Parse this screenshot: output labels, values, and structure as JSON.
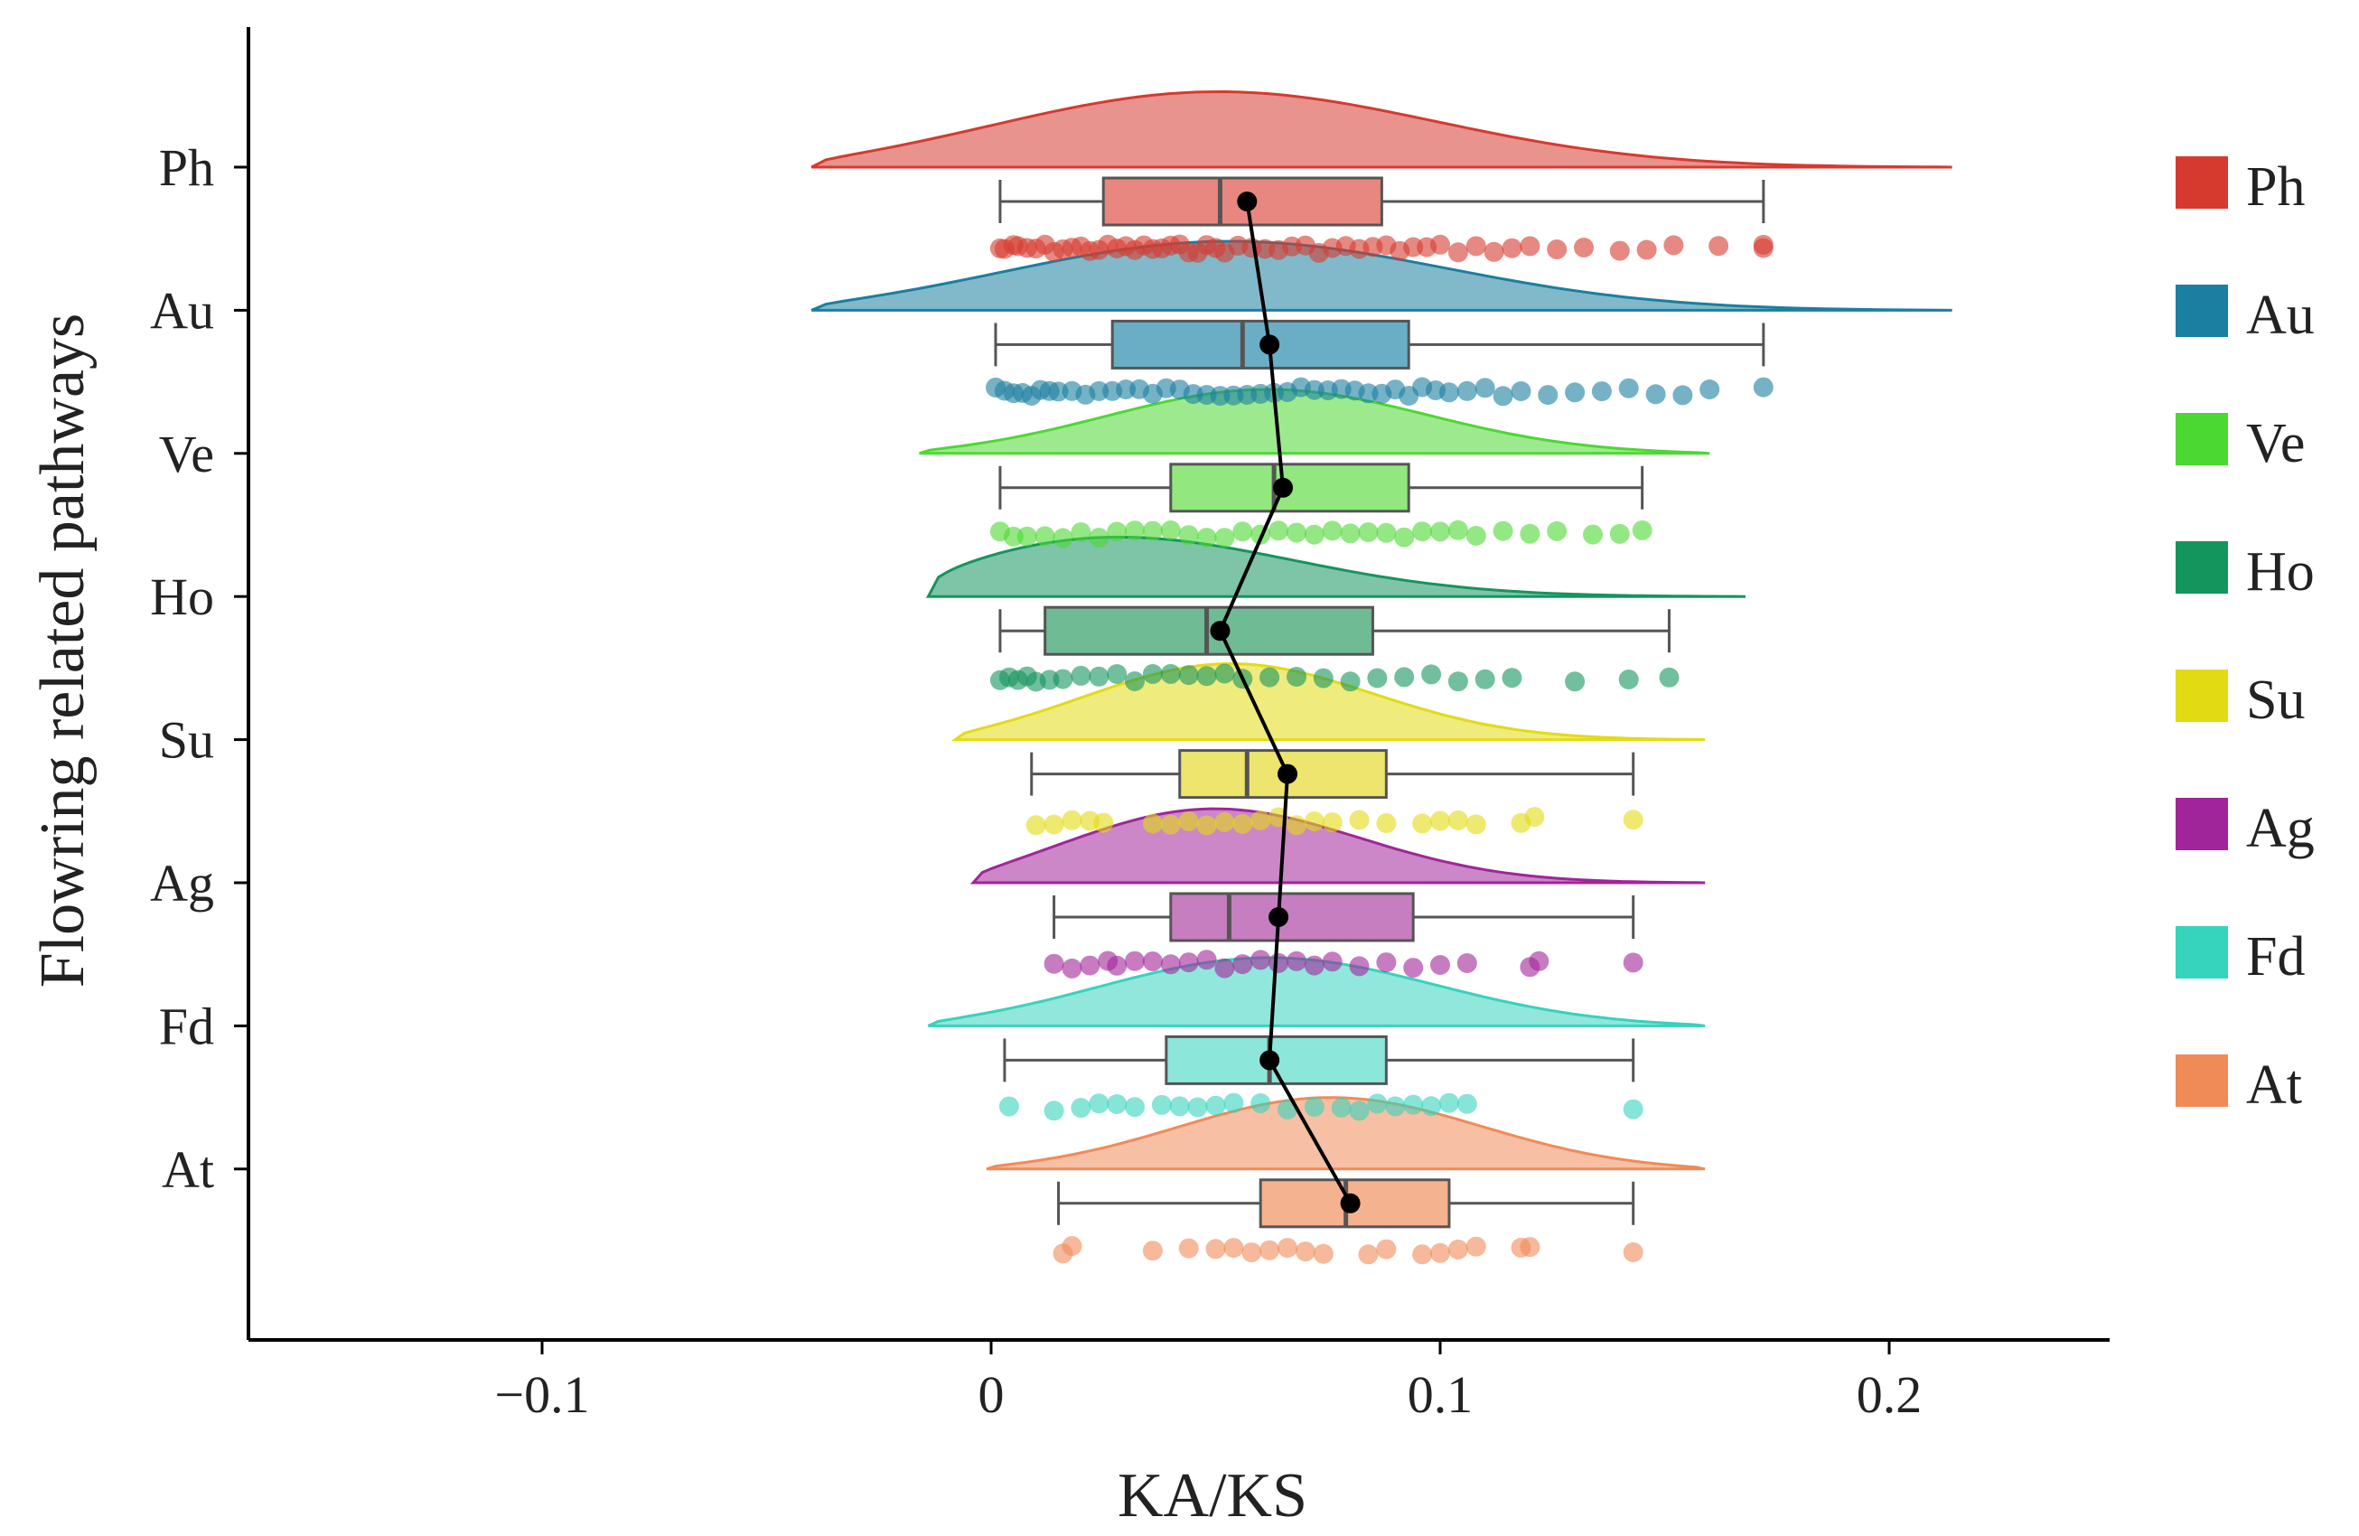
{
  "chart_data": {
    "type": "raincloud",
    "xlabel": "KA/KS",
    "ylabel": "Flowring related pathways",
    "xlim": [
      -0.165,
      0.247
    ],
    "xticks": [
      -0.1,
      0,
      0.1,
      0.2
    ],
    "xtick_labels": [
      "−0.1",
      "0",
      "0.1",
      "0.2"
    ],
    "legend_position": "right",
    "series": [
      {
        "name": "Ph",
        "color": "#d63a2f",
        "box_fill": "#e8877f",
        "min": 0.002,
        "q1": 0.025,
        "median": 0.051,
        "q3": 0.087,
        "max": 0.172,
        "mean": 0.057,
        "density": {
          "from": -0.04,
          "to": 0.214,
          "peak": 0.045,
          "sd": 0.052,
          "height": 0.55
        },
        "points": [
          0.002,
          0.003,
          0.005,
          0.006,
          0.008,
          0.01,
          0.012,
          0.014,
          0.016,
          0.018,
          0.02,
          0.022,
          0.024,
          0.026,
          0.028,
          0.03,
          0.032,
          0.034,
          0.036,
          0.038,
          0.04,
          0.042,
          0.044,
          0.046,
          0.048,
          0.05,
          0.052,
          0.055,
          0.058,
          0.061,
          0.064,
          0.067,
          0.07,
          0.073,
          0.076,
          0.079,
          0.082,
          0.085,
          0.088,
          0.091,
          0.094,
          0.097,
          0.1,
          0.104,
          0.108,
          0.112,
          0.116,
          0.12,
          0.126,
          0.132,
          0.14,
          0.146,
          0.152,
          0.162,
          0.172,
          0.172
        ]
      },
      {
        "name": "Au",
        "color": "#1a7fa0",
        "box_fill": "#6aaec6",
        "min": 0.001,
        "q1": 0.027,
        "median": 0.056,
        "q3": 0.093,
        "max": 0.172,
        "mean": 0.062,
        "density": {
          "from": -0.04,
          "to": 0.214,
          "peak": 0.048,
          "sd": 0.052,
          "height": 0.5
        },
        "points": [
          0.001,
          0.003,
          0.005,
          0.007,
          0.009,
          0.011,
          0.013,
          0.015,
          0.018,
          0.021,
          0.024,
          0.027,
          0.03,
          0.033,
          0.036,
          0.039,
          0.042,
          0.045,
          0.048,
          0.051,
          0.054,
          0.057,
          0.06,
          0.063,
          0.066,
          0.069,
          0.072,
          0.075,
          0.078,
          0.081,
          0.084,
          0.087,
          0.09,
          0.093,
          0.096,
          0.099,
          0.102,
          0.106,
          0.11,
          0.114,
          0.118,
          0.124,
          0.13,
          0.136,
          0.142,
          0.148,
          0.154,
          0.16,
          0.172
        ]
      },
      {
        "name": "Ve",
        "color": "#4cd832",
        "box_fill": "#92e87e",
        "min": 0.002,
        "q1": 0.04,
        "median": 0.063,
        "q3": 0.093,
        "max": 0.145,
        "mean": 0.065,
        "density": {
          "from": -0.016,
          "to": 0.16,
          "peak": 0.06,
          "sd": 0.038,
          "height": 0.45
        },
        "points": [
          0.002,
          0.005,
          0.008,
          0.012,
          0.016,
          0.02,
          0.024,
          0.028,
          0.032,
          0.036,
          0.04,
          0.044,
          0.048,
          0.052,
          0.056,
          0.06,
          0.064,
          0.068,
          0.072,
          0.076,
          0.08,
          0.084,
          0.088,
          0.092,
          0.096,
          0.1,
          0.104,
          0.108,
          0.114,
          0.12,
          0.126,
          0.134,
          0.14,
          0.145
        ]
      },
      {
        "name": "Ho",
        "color": "#14955e",
        "box_fill": "#6fbb94",
        "min": 0.002,
        "q1": 0.012,
        "median": 0.048,
        "q3": 0.085,
        "max": 0.151,
        "mean": 0.051,
        "density": {
          "from": -0.014,
          "to": 0.168,
          "peak": 0.015,
          "sd": 0.045,
          "height": 0.5
        },
        "points": [
          0.002,
          0.004,
          0.006,
          0.008,
          0.01,
          0.013,
          0.016,
          0.02,
          0.024,
          0.028,
          0.032,
          0.036,
          0.04,
          0.044,
          0.048,
          0.052,
          0.056,
          0.062,
          0.068,
          0.074,
          0.08,
          0.086,
          0.092,
          0.098,
          0.104,
          0.11,
          0.116,
          0.13,
          0.142,
          0.151
        ]
      },
      {
        "name": "Su",
        "color": "#e2db13",
        "box_fill": "#eee56e",
        "min": 0.009,
        "q1": 0.042,
        "median": 0.057,
        "q3": 0.088,
        "max": 0.143,
        "mean": 0.066,
        "density": {
          "from": -0.008,
          "to": 0.159,
          "peak": 0.05,
          "sd": 0.034,
          "height": 0.55
        },
        "points": [
          0.01,
          0.014,
          0.018,
          0.022,
          0.025,
          0.036,
          0.04,
          0.044,
          0.048,
          0.052,
          0.056,
          0.06,
          0.064,
          0.068,
          0.072,
          0.076,
          0.082,
          0.088,
          0.096,
          0.1,
          0.104,
          0.108,
          0.118,
          0.121,
          0.143
        ]
      },
      {
        "name": "Ag",
        "color": "#a1259a",
        "box_fill": "#c77ec1",
        "min": 0.014,
        "q1": 0.04,
        "median": 0.053,
        "q3": 0.094,
        "max": 0.143,
        "mean": 0.064,
        "density": {
          "from": -0.004,
          "to": 0.159,
          "peak": 0.045,
          "sd": 0.035,
          "height": 0.55
        },
        "points": [
          0.014,
          0.018,
          0.022,
          0.026,
          0.028,
          0.032,
          0.036,
          0.04,
          0.044,
          0.048,
          0.052,
          0.056,
          0.06,
          0.064,
          0.068,
          0.072,
          0.076,
          0.082,
          0.088,
          0.094,
          0.1,
          0.106,
          0.12,
          0.122,
          0.143
        ]
      },
      {
        "name": "Fd",
        "color": "#36d3bd",
        "box_fill": "#8de6da",
        "min": 0.003,
        "q1": 0.039,
        "median": 0.062,
        "q3": 0.088,
        "max": 0.143,
        "mean": 0.062,
        "density": {
          "from": -0.014,
          "to": 0.159,
          "peak": 0.06,
          "sd": 0.04,
          "height": 0.48
        },
        "points": [
          0.004,
          0.014,
          0.02,
          0.024,
          0.028,
          0.032,
          0.038,
          0.042,
          0.046,
          0.05,
          0.054,
          0.06,
          0.066,
          0.072,
          0.078,
          0.082,
          0.086,
          0.09,
          0.094,
          0.098,
          0.102,
          0.106,
          0.143
        ]
      },
      {
        "name": "At",
        "color": "#f08b58",
        "box_fill": "#f5b28f",
        "min": 0.015,
        "q1": 0.06,
        "median": 0.079,
        "q3": 0.102,
        "max": 0.143,
        "mean": 0.08,
        "density": {
          "from": -0.001,
          "to": 0.159,
          "peak": 0.075,
          "sd": 0.036,
          "height": 0.5
        },
        "points": [
          0.016,
          0.018,
          0.036,
          0.044,
          0.05,
          0.054,
          0.058,
          0.062,
          0.066,
          0.07,
          0.074,
          0.084,
          0.088,
          0.096,
          0.1,
          0.104,
          0.108,
          0.118,
          0.12,
          0.143
        ]
      }
    ]
  }
}
